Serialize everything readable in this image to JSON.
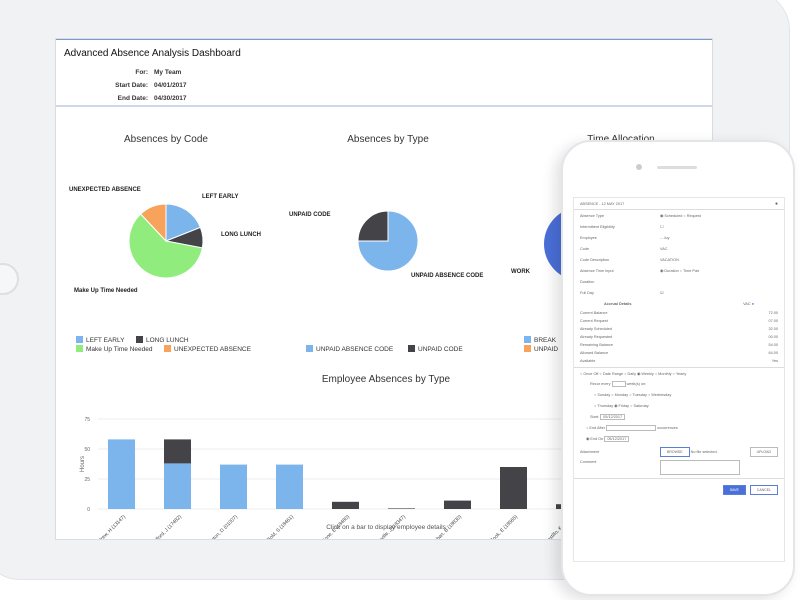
{
  "dashboard": {
    "title": "Advanced Absence Analysis Dashboard",
    "for_label": "For:",
    "for_value": "My Team",
    "start_label": "Start Date:",
    "start_value": "04/01/2017",
    "end_label": "End Date:",
    "end_value": "04/30/2017"
  },
  "chart_data": [
    {
      "type": "pie",
      "title": "Absences by Code",
      "slices": [
        {
          "name": "LEFT EARLY",
          "value": 19,
          "color": "#7cb5ec"
        },
        {
          "name": "LONG LUNCH",
          "value": 9,
          "color": "#434348"
        },
        {
          "name": "Make Up Time Needed",
          "value": 60,
          "color": "#90ed7d"
        },
        {
          "name": "UNEXPECTED ABSENCE",
          "value": 12,
          "color": "#f7a35c"
        }
      ],
      "legend": "bottom"
    },
    {
      "type": "pie",
      "title": "Absences by Type",
      "slices": [
        {
          "name": "UNPAID ABSENCE CODE",
          "value": 75,
          "color": "#7cb5ec"
        },
        {
          "name": "UNPAID CODE",
          "value": 25,
          "color": "#434348"
        }
      ],
      "legend": "bottom"
    },
    {
      "type": "pie",
      "title": "Time Allocation",
      "slices": [
        {
          "name": "WORK",
          "color": "#4a6fd8"
        },
        {
          "name": "BREAK",
          "color": "#7cb5ec"
        },
        {
          "name": "UNPAID",
          "color": "#f7a35c"
        }
      ],
      "legend": "bottom"
    },
    {
      "type": "bar",
      "title": "Employee Absences by Type",
      "ylabel": "Hours",
      "ylim": [
        0,
        75
      ],
      "yticks": [
        0,
        25,
        50,
        75
      ],
      "grid": true,
      "stacked": true,
      "categories": [
        "Andrew, H (13147)",
        "Belford, J (17482)",
        "Benton, D (01007)",
        "Bold, S (18461)",
        "Bone, E (18480)",
        "Bonville, J (18347)",
        "Callahan, B (18830)",
        "Cook, E (18565)",
        "Castillo, K (183..."
      ],
      "series": [
        {
          "color": "#7cb5ec",
          "values": [
            58,
            38,
            37,
            37,
            0,
            0,
            0,
            0,
            0
          ]
        },
        {
          "color": "#434348",
          "values": [
            0,
            20,
            0,
            0,
            6,
            0.5,
            7,
            35,
            4
          ]
        }
      ],
      "footer": "Click on a bar to display employee details"
    }
  ],
  "phone": {
    "title": "ABSENCE - 12 MAY 2017",
    "rows": [
      {
        "label": "Absence Type",
        "value": "◉ Scheduled  ○ Request"
      },
      {
        "label": "Intermittent Eligibility",
        "value": "☐"
      },
      {
        "label": "Employee",
        "value": "-- Joy"
      },
      {
        "label": "Code",
        "value": "VAC"
      },
      {
        "label": "Code Description",
        "value": "VACATION"
      },
      {
        "label": "Absence Time Input",
        "value": "◉ Duration  ○ Time Pair"
      },
      {
        "label": "Duration",
        "value": ""
      },
      {
        "label": "Full Day",
        "value": "☑"
      }
    ],
    "accrual_title": "Accrual Details",
    "accrual_code": "VAC",
    "accrual": [
      {
        "label": "Current Balance",
        "value": "72.00"
      },
      {
        "label": "Current Request",
        "value": "07.00"
      },
      {
        "label": "Already Scheduled",
        "value": "32.00"
      },
      {
        "label": "Already Requested",
        "value": "00.00"
      },
      {
        "label": "Remaining Balance",
        "value": "54.00"
      },
      {
        "label": "Allowed Balance",
        "value": "64.00"
      },
      {
        "label": "Available",
        "value": "Yes"
      }
    ],
    "recurrence": "○ Once Off  ○ Date Range  ○ Daily  ◉ Weekly  ○ Monthly  ○ Yearly",
    "recur_every": "Recur every",
    "recur_suffix": "week(s) on:",
    "days1": "○ Sunday   ○ Monday   ○ Tuesday   ○ Wednesday",
    "days2": "○ Thursday   ◉ Friday   ○ Saturday",
    "start_label": "Start:",
    "start_value": "05/12/2017",
    "end_after": "○ End After",
    "occurrences": "occurrences",
    "end_on": "◉ End On",
    "end_on_value": "05/12/2017",
    "attachment": "Attachment",
    "browse": "BROWSE",
    "no_file": "No file selected.",
    "upload": "UPLOAD",
    "comment": "Comment",
    "save": "SAVE",
    "cancel": "CANCEL"
  }
}
